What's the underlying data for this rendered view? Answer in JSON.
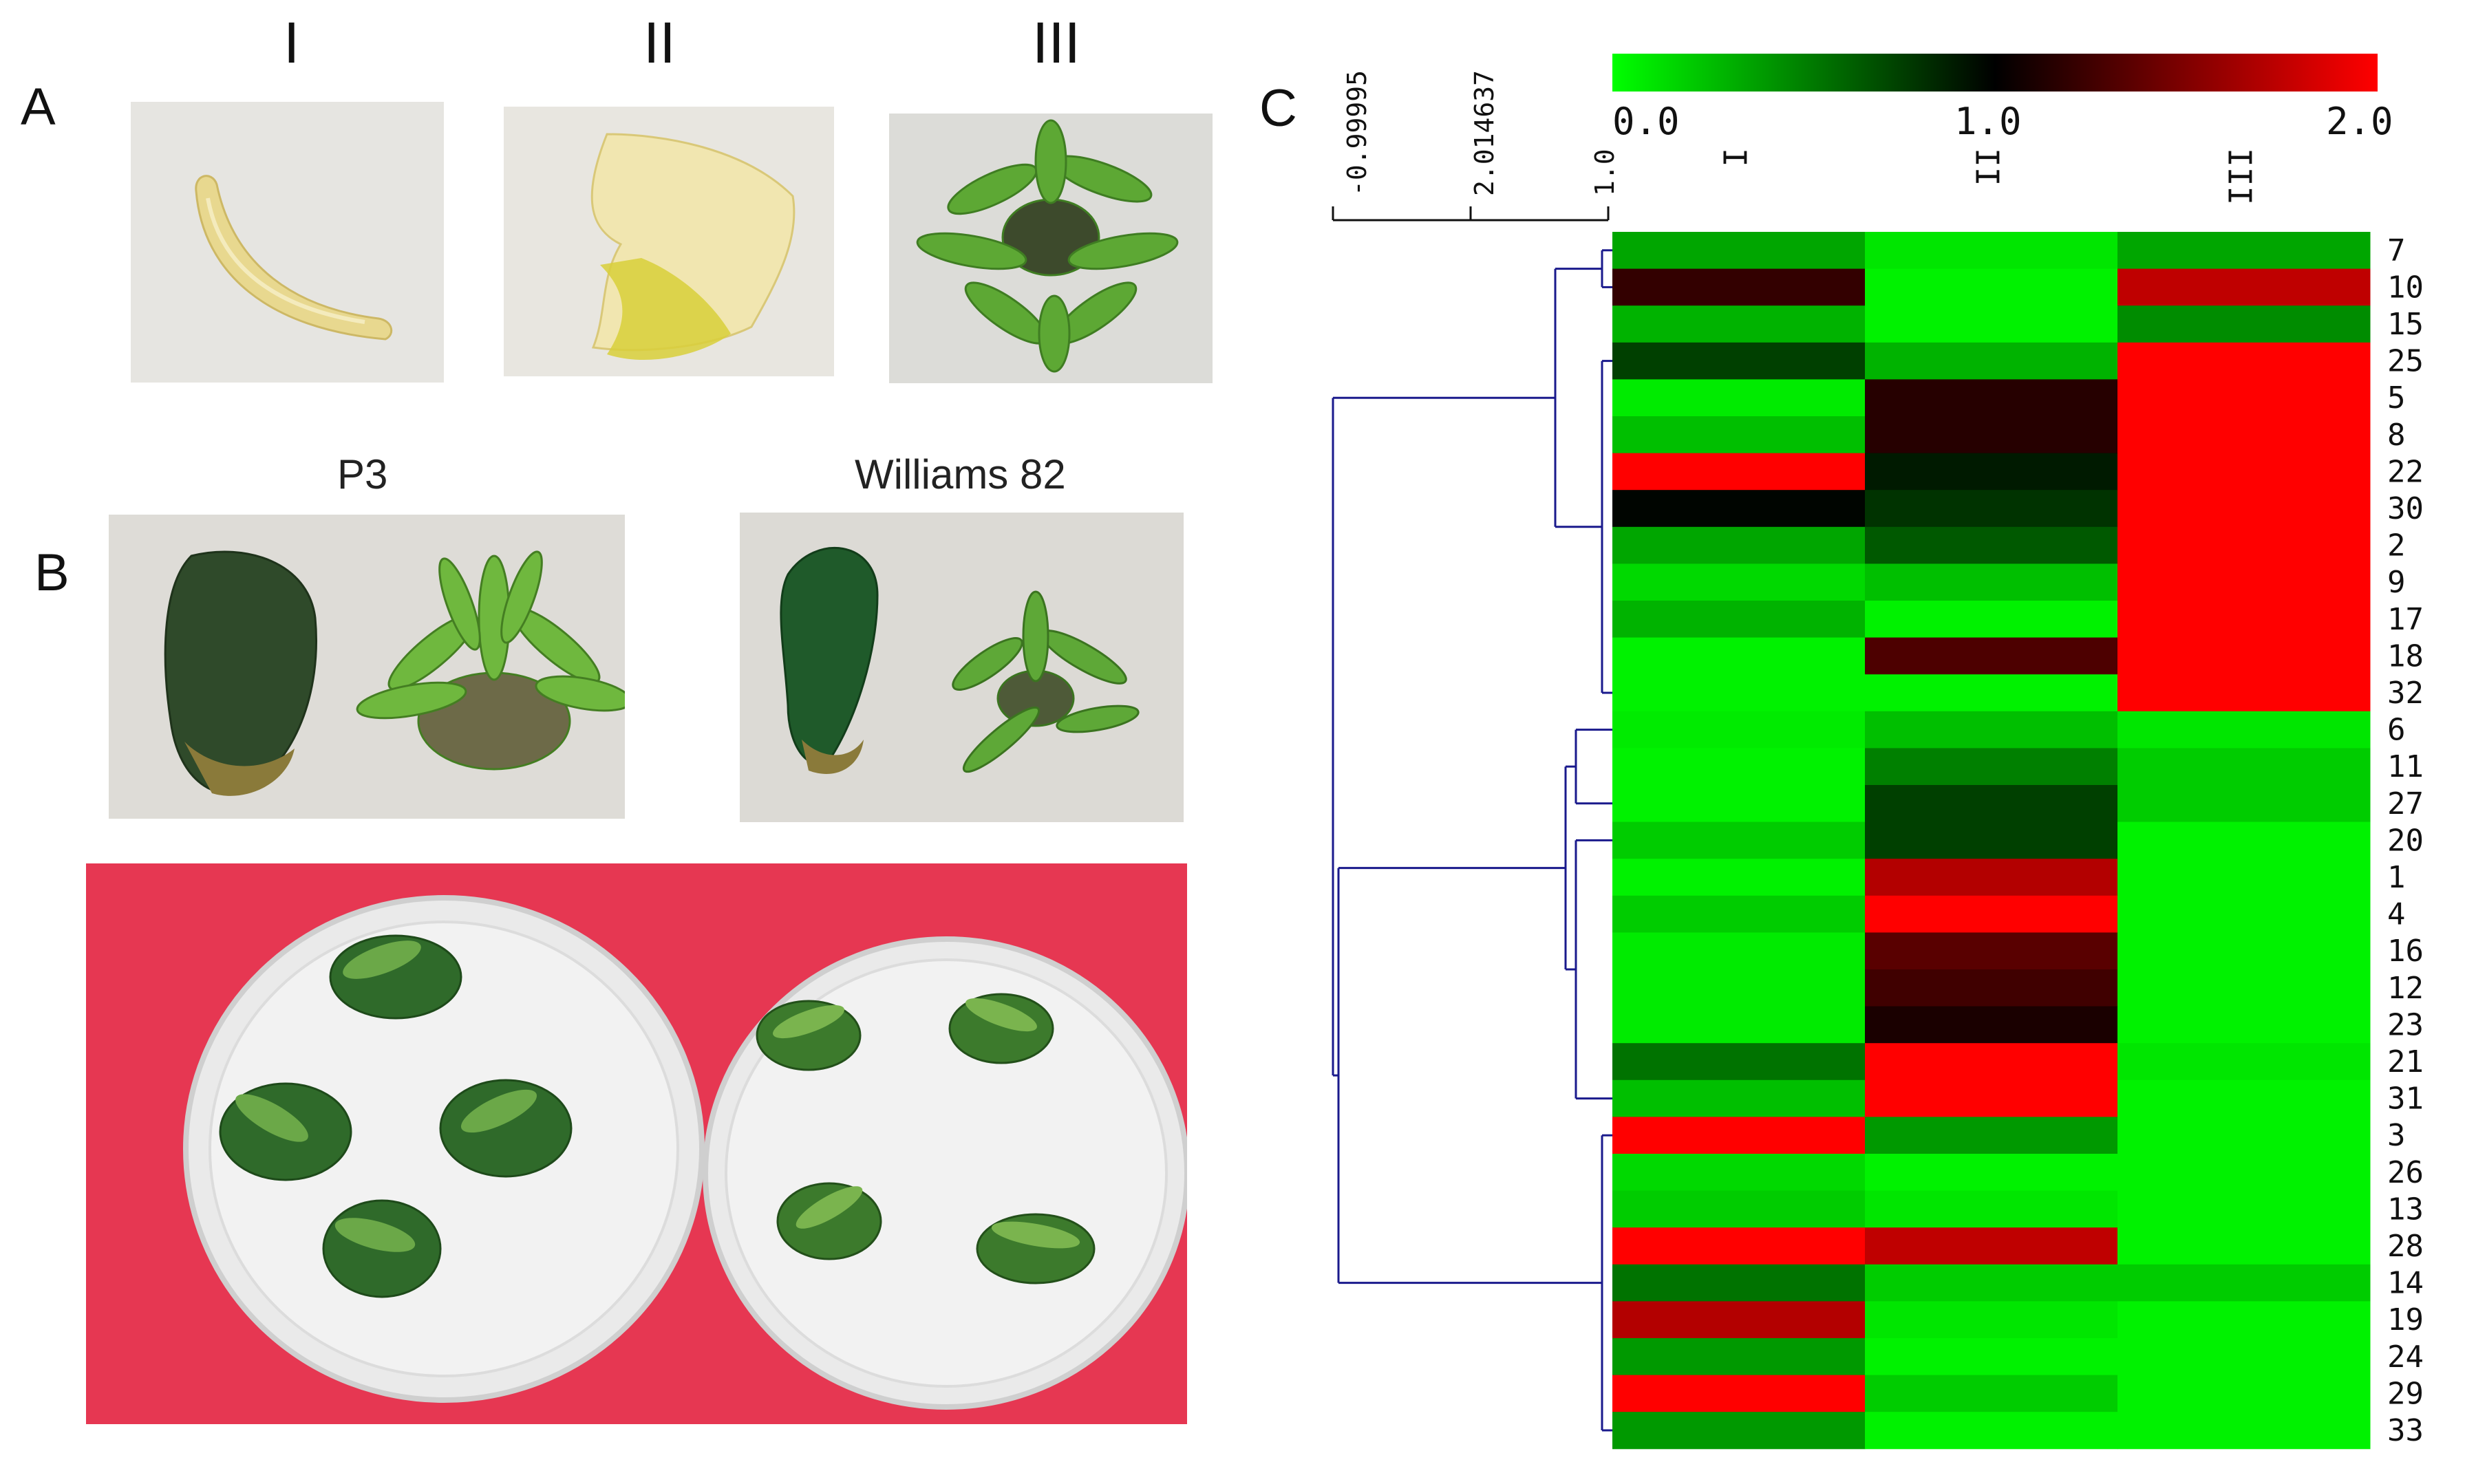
{
  "panels": {
    "a": {
      "letter": "A",
      "stages": [
        "I",
        "II",
        "III"
      ]
    },
    "b": {
      "letter": "B",
      "varieties": [
        "P3",
        "Williams 82"
      ]
    },
    "c": {
      "letter": "C"
    }
  },
  "chart_data": {
    "type": "heatmap",
    "columns": [
      "I",
      "II",
      "III"
    ],
    "rows": [
      "7",
      "10",
      "15",
      "25",
      "5",
      "8",
      "22",
      "30",
      "2",
      "9",
      "17",
      "18",
      "32",
      "6",
      "11",
      "27",
      "20",
      "1",
      "4",
      "16",
      "12",
      "23",
      "21",
      "31",
      "3",
      "26",
      "13",
      "28",
      "14",
      "19",
      "24",
      "29",
      "33"
    ],
    "values": [
      [
        0.35,
        0.1,
        0.35
      ],
      [
        1.2,
        0.05,
        1.75
      ],
      [
        0.3,
        0.05,
        0.45
      ],
      [
        0.75,
        0.3,
        2.0
      ],
      [
        0.08,
        1.15,
        2.0
      ],
      [
        0.25,
        1.15,
        2.0
      ],
      [
        2.0,
        0.9,
        2.0
      ],
      [
        0.98,
        0.8,
        2.0
      ],
      [
        0.35,
        0.65,
        2.0
      ],
      [
        0.15,
        0.25,
        2.0
      ],
      [
        0.3,
        0.05,
        2.0
      ],
      [
        0.05,
        1.3,
        2.0
      ],
      [
        0.05,
        0.05,
        2.0
      ],
      [
        0.08,
        0.25,
        0.1
      ],
      [
        0.05,
        0.5,
        0.2
      ],
      [
        0.05,
        0.75,
        0.2
      ],
      [
        0.2,
        0.75,
        0.05
      ],
      [
        0.05,
        1.7,
        0.05
      ],
      [
        0.2,
        2.0,
        0.05
      ],
      [
        0.08,
        1.35,
        0.05
      ],
      [
        0.08,
        1.25,
        0.05
      ],
      [
        0.08,
        1.1,
        0.05
      ],
      [
        0.55,
        2.0,
        0.1
      ],
      [
        0.25,
        2.0,
        0.05
      ],
      [
        2.0,
        0.4,
        0.05
      ],
      [
        0.15,
        0.05,
        0.05
      ],
      [
        0.2,
        0.1,
        0.05
      ],
      [
        2.0,
        1.75,
        0.05
      ],
      [
        0.55,
        0.2,
        0.2
      ],
      [
        1.7,
        0.1,
        0.05
      ],
      [
        0.4,
        0.05,
        0.05
      ],
      [
        2.0,
        0.2,
        0.05
      ],
      [
        0.4,
        0.05,
        0.05
      ]
    ],
    "color_scale": {
      "min": 0.0,
      "mid": 1.0,
      "max": 2.0,
      "colors": [
        "#00ff00",
        "#000000",
        "#ff0000"
      ]
    },
    "colorbar_ticks": [
      "0.0",
      "1.0",
      "2.0"
    ],
    "dendrogram_scale_labels": [
      "-0.99995",
      "2.014637",
      "1.0"
    ],
    "dendrogram_color": "#1a1a8c"
  }
}
